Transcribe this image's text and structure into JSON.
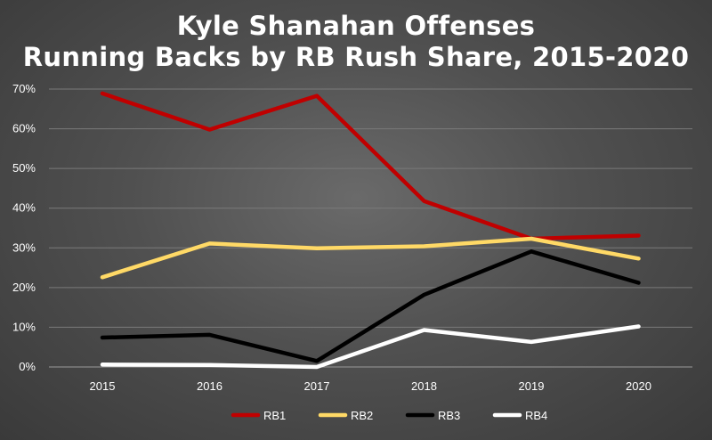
{
  "chart_data": {
    "type": "line",
    "title": "Kyle Shanahan Offenses",
    "subtitle": "Running Backs by RB Rush Share, 2015-2020",
    "xlabel": "",
    "ylabel": "",
    "categories": [
      "2015",
      "2016",
      "2017",
      "2018",
      "2019",
      "2020"
    ],
    "ylim": [
      0,
      0.7
    ],
    "yticks": [
      "0%",
      "10%",
      "20%",
      "30%",
      "40%",
      "50%",
      "60%",
      "70%"
    ],
    "grid": "horizontal",
    "legend_position": "bottom",
    "series": [
      {
        "name": "RB1",
        "color": "#c00000",
        "values": [
          0.689,
          0.598,
          0.683,
          0.418,
          0.323,
          0.331
        ]
      },
      {
        "name": "RB2",
        "color": "#ffd966",
        "values": [
          0.226,
          0.311,
          0.299,
          0.304,
          0.323,
          0.273
        ]
      },
      {
        "name": "RB3",
        "color": "#000000",
        "values": [
          0.074,
          0.081,
          0.015,
          0.182,
          0.291,
          0.212
        ]
      },
      {
        "name": "RB4",
        "color": "#ffffff",
        "values": [
          0.006,
          0.005,
          0.0,
          0.093,
          0.063,
          0.102
        ]
      }
    ]
  }
}
